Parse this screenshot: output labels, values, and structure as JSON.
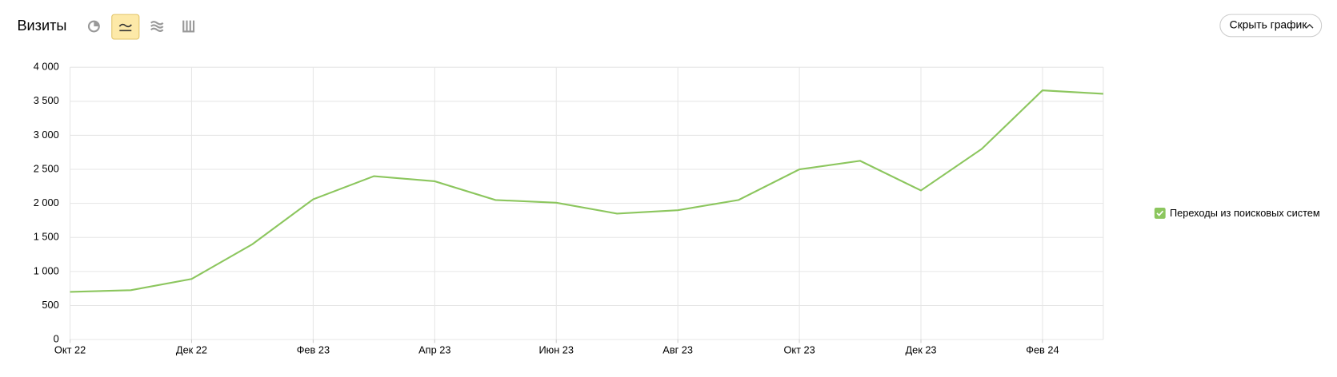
{
  "chart_data": {
    "type": "line",
    "title": "Визиты",
    "categories": [
      "Окт 22",
      null,
      "Дек 22",
      null,
      "Фев 23",
      null,
      "Апр 23",
      null,
      "Июн 23",
      null,
      "Авг 23",
      null,
      "Окт 23",
      null,
      "Дек 23",
      null,
      "Фев 24",
      null
    ],
    "series": [
      {
        "name": "Переходы из поисковых систем",
        "color": "#8cc65e",
        "values": [
          700,
          725,
          890,
          1400,
          2060,
          2400,
          2325,
          2050,
          2010,
          1850,
          1900,
          2050,
          2500,
          2625,
          2190,
          2800,
          3660,
          3610
        ]
      }
    ],
    "ylim": [
      0,
      4000
    ],
    "yticks": [
      0,
      500,
      {
        "value": 1000,
        "label": "1 000"
      },
      {
        "value": 1500,
        "label": "1 500"
      },
      {
        "value": 2000,
        "label": "2 000"
      },
      {
        "value": 2500,
        "label": "2 500"
      },
      {
        "value": 3000,
        "label": "3 000"
      },
      {
        "value": 3500,
        "label": "3 500"
      },
      {
        "value": 4000,
        "label": "4 000"
      }
    ],
    "grid": true
  },
  "toolbar": {
    "hide_button": "Скрыть график"
  }
}
